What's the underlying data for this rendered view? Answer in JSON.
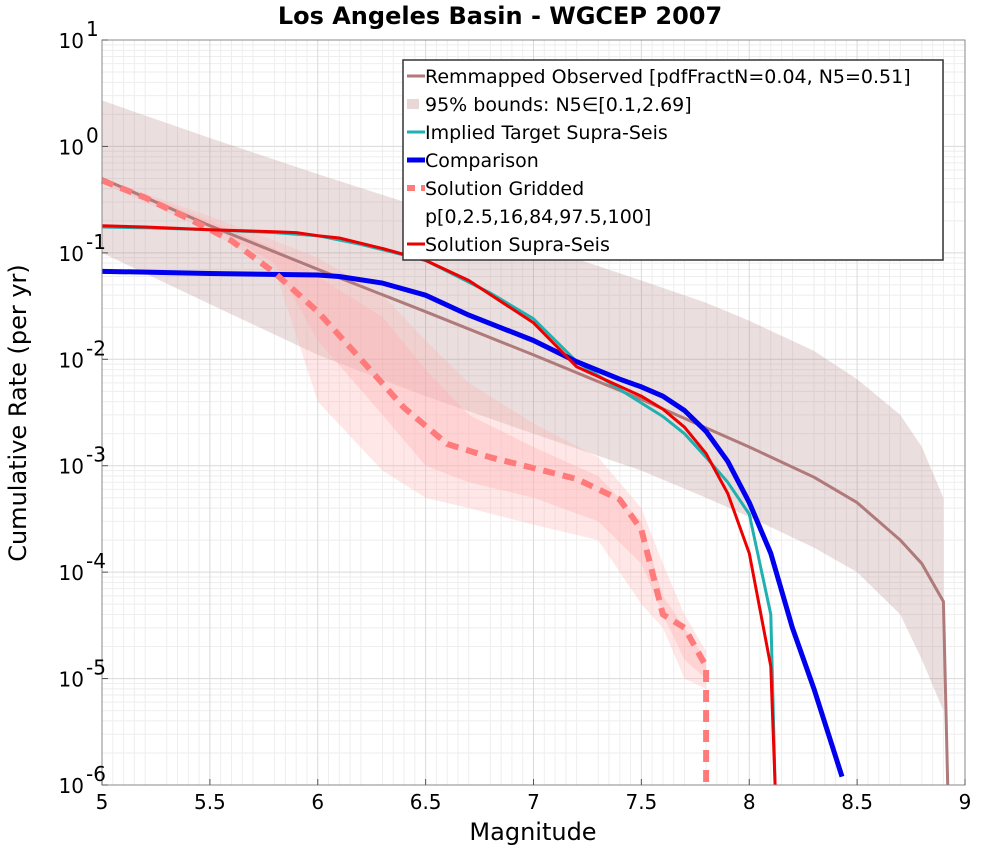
{
  "chart_data": {
    "type": "line",
    "title": "Los Angeles Basin - WGCEP 2007",
    "xlabel": "Magnitude",
    "ylabel": "Cumulative Rate (per yr)",
    "xlim": [
      5,
      9
    ],
    "ylim": [
      1e-06,
      10
    ],
    "yscale": "log",
    "grid": true,
    "legend_position": "top-right",
    "x_ticks": [
      5,
      5.5,
      6,
      6.5,
      7,
      7.5,
      8,
      8.5,
      9
    ],
    "x_tick_labels": [
      "5",
      "5.5",
      "6",
      "6.5",
      "7",
      "7.5",
      "8",
      "8.5",
      "9"
    ],
    "y_ticks": [
      {
        "value": 1e-06,
        "base": "10",
        "exp": "-6"
      },
      {
        "value": 1e-05,
        "base": "10",
        "exp": "-5"
      },
      {
        "value": 0.0001,
        "base": "10",
        "exp": "-4"
      },
      {
        "value": 0.001,
        "base": "10",
        "exp": "-3"
      },
      {
        "value": 0.01,
        "base": "10",
        "exp": "-2"
      },
      {
        "value": 0.1,
        "base": "10",
        "exp": "-1"
      },
      {
        "value": 1,
        "base": "10",
        "exp": "0"
      },
      {
        "value": 10,
        "base": "10",
        "exp": "1"
      }
    ],
    "bands": [
      {
        "name": "95% bounds: N5∈[0.1,2.69]",
        "color": "#b07a7a",
        "opacity": 0.25,
        "x": [
          5,
          5.5,
          6,
          6.5,
          7,
          7.5,
          7.8,
          8.0,
          8.3,
          8.5,
          8.7,
          8.8,
          8.9
        ],
        "upper": [
          2.7,
          1.2,
          0.55,
          0.26,
          0.12,
          0.055,
          0.034,
          0.023,
          0.012,
          0.0065,
          0.003,
          0.0015,
          0.0005
        ],
        "lower": [
          0.1,
          0.033,
          0.011,
          0.0045,
          0.002,
          0.0009,
          0.0005,
          0.00033,
          0.00017,
          0.0001,
          4e-05,
          1.5e-05,
          5e-06
        ]
      },
      {
        "name": "",
        "color": "#ffb0b0",
        "opacity": 0.3,
        "x": [
          5.0,
          5.5,
          5.8,
          6.0,
          6.3,
          6.5,
          6.7,
          7.0,
          7.3,
          7.5,
          7.6,
          7.7,
          7.8
        ],
        "upper": [
          0.5,
          0.22,
          0.13,
          0.09,
          0.04,
          0.015,
          0.006,
          0.0025,
          0.0012,
          0.0004,
          0.00012,
          4e-05,
          1.8e-05
        ],
        "lower": [
          0.45,
          0.16,
          0.07,
          0.004,
          0.0009,
          0.0005,
          0.0004,
          0.00028,
          0.0002,
          5e-05,
          3e-05,
          1e-05,
          8e-06
        ]
      },
      {
        "name": "",
        "color": "#ffb0b0",
        "opacity": 0.35,
        "x": [
          5.0,
          5.5,
          5.8,
          6.0,
          6.3,
          6.5,
          6.7,
          7.0,
          7.3,
          7.5,
          7.6,
          7.7,
          7.8
        ],
        "upper": [
          0.5,
          0.2,
          0.11,
          0.06,
          0.025,
          0.008,
          0.003,
          0.0015,
          0.0008,
          0.0003,
          6e-05,
          3e-05,
          1.5e-05
        ],
        "lower": [
          0.46,
          0.18,
          0.08,
          0.015,
          0.003,
          0.001,
          0.0007,
          0.0005,
          0.0003,
          0.00012,
          4e-05,
          1.5e-05,
          1e-05
        ]
      }
    ],
    "series": [
      {
        "name": "Remmapped Observed [pdfFractN=0.04, N5=0.51]",
        "color": "#b07a7a",
        "width": 3,
        "dash": "",
        "x": [
          5,
          5.5,
          6,
          6.5,
          7,
          7.5,
          8,
          8.3,
          8.5,
          8.6,
          8.7,
          8.8,
          8.9,
          8.92
        ],
        "y": [
          0.5,
          0.18,
          0.07,
          0.028,
          0.011,
          0.0042,
          0.0015,
          0.00078,
          0.00045,
          0.0003,
          0.0002,
          0.00012,
          5.3e-05,
          1e-06
        ]
      },
      {
        "name": "Implied Target Supra-Seis",
        "color": "#20b0b0",
        "width": 3,
        "dash": "",
        "x": [
          5,
          5.2,
          5.5,
          5.8,
          6.0,
          6.2,
          6.5,
          6.8,
          7.0,
          7.2,
          7.4,
          7.6,
          7.7,
          7.8,
          7.9,
          8.0,
          8.1,
          8.12
        ],
        "y": [
          0.175,
          0.172,
          0.165,
          0.155,
          0.145,
          0.12,
          0.085,
          0.042,
          0.024,
          0.0095,
          0.0052,
          0.0029,
          0.002,
          0.0012,
          0.0007,
          0.00035,
          4e-05,
          1e-06
        ]
      },
      {
        "name": "Comparison",
        "color": "#0000ee",
        "width": 5,
        "dash": "",
        "x": [
          5,
          5.2,
          5.5,
          6.0,
          6.1,
          6.3,
          6.5,
          6.7,
          7.0,
          7.2,
          7.4,
          7.5,
          7.6,
          7.7,
          7.8,
          7.9,
          8.0,
          8.1,
          8.2,
          8.3,
          8.43
        ],
        "y": [
          0.067,
          0.066,
          0.064,
          0.062,
          0.06,
          0.052,
          0.04,
          0.026,
          0.015,
          0.0095,
          0.0065,
          0.0055,
          0.0045,
          0.0033,
          0.0021,
          0.0011,
          0.00045,
          0.00015,
          3e-05,
          8e-06,
          1.2e-06
        ]
      },
      {
        "name": "Solution Gridded",
        "color": "#ff7a7a",
        "width": 6,
        "dash": "12,8",
        "x": [
          5.0,
          5.2,
          5.4,
          5.6,
          5.8,
          6.0,
          6.2,
          6.4,
          6.6,
          6.8,
          7.0,
          7.2,
          7.4,
          7.5,
          7.55,
          7.6,
          7.7,
          7.8,
          7.8
        ],
        "y": [
          0.48,
          0.33,
          0.21,
          0.13,
          0.065,
          0.028,
          0.01,
          0.0035,
          0.0016,
          0.0012,
          0.00095,
          0.00075,
          0.00048,
          0.00025,
          0.0001,
          4e-05,
          3e-05,
          1.3e-05,
          1e-06
        ]
      },
      {
        "name": "p[0,2.5,16,84,97.5,100]",
        "color": "#ffb0b0",
        "width": 0,
        "dash": "",
        "x": [],
        "y": []
      },
      {
        "name": "Solution Supra-Seis",
        "color": "#ee0000",
        "width": 3,
        "dash": "",
        "x": [
          5,
          5.2,
          5.5,
          5.8,
          5.9,
          6.0,
          6.1,
          6.3,
          6.5,
          6.7,
          7.0,
          7.2,
          7.5,
          7.6,
          7.7,
          7.8,
          7.9,
          8.0,
          8.1,
          8.12
        ],
        "y": [
          0.18,
          0.175,
          0.165,
          0.158,
          0.155,
          0.145,
          0.138,
          0.11,
          0.085,
          0.055,
          0.022,
          0.0085,
          0.0045,
          0.0034,
          0.0023,
          0.0013,
          0.00055,
          0.00015,
          1.3e-05,
          1e-06
        ]
      }
    ],
    "legend": {
      "entries": [
        {
          "label": "Remmapped Observed [pdfFractN=0.04, N5=0.51]",
          "symbol": "line",
          "color": "#b07a7a",
          "width": 3,
          "dash": ""
        },
        {
          "label": "95% bounds: N5∈[0.1,2.69]",
          "symbol": "patch",
          "color": "#e9d6d6",
          "width": 0,
          "dash": ""
        },
        {
          "label": "Implied Target Supra-Seis",
          "symbol": "line",
          "color": "#20b0b0",
          "width": 3,
          "dash": ""
        },
        {
          "label": "Comparison",
          "symbol": "line",
          "color": "#0000ee",
          "width": 5,
          "dash": ""
        },
        {
          "label": "Solution Gridded",
          "symbol": "line",
          "color": "#ff7a7a",
          "width": 6,
          "dash": "12,8"
        },
        {
          "label": "p[0,2.5,16,84,97.5,100]",
          "symbol": "none",
          "color": "#ffb0b0",
          "width": 0,
          "dash": ""
        },
        {
          "label": "Solution Supra-Seis",
          "symbol": "line",
          "color": "#ee0000",
          "width": 3,
          "dash": ""
        }
      ]
    }
  }
}
